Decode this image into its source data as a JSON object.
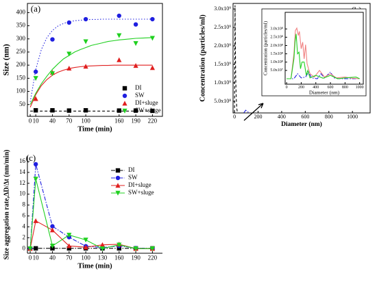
{
  "chart_data": [
    {
      "type": "scatter",
      "label": "(a)",
      "xlabel": "Time (min)",
      "ylabel": "Size (nm)",
      "x": [
        10,
        40,
        70,
        100,
        160,
        190,
        220
      ],
      "xlim": [
        -5,
        238
      ],
      "xticks": [
        0,
        10,
        40,
        70,
        100,
        160,
        190,
        220
      ],
      "ylim": [
        5,
        435
      ],
      "yticks": [
        50,
        100,
        150,
        200,
        250,
        300,
        350,
        400
      ],
      "legend": "lower right",
      "fit_x": [
        0,
        10,
        20,
        30,
        40,
        50,
        60,
        70,
        80,
        90,
        100,
        110,
        120,
        130,
        140,
        150,
        160,
        170,
        180,
        190,
        200,
        210,
        220
      ],
      "series": [
        {
          "name": "DI",
          "color": "#000000",
          "marker": "square",
          "dash": "dash",
          "values": [
            28,
            28,
            27,
            28,
            27,
            27,
            26
          ],
          "fit": [
            25,
            25,
            25,
            25,
            25,
            25,
            25,
            25,
            25,
            25,
            25,
            25,
            25,
            25,
            25,
            25,
            25,
            25,
            25,
            25,
            25,
            25,
            25
          ]
        },
        {
          "name": "SW",
          "color": "#1f1fe0",
          "marker": "circle",
          "dash": "dot",
          "values": [
            175,
            298,
            362,
            375,
            388,
            355,
            375
          ],
          "fit": [
            60,
            184,
            259,
            305,
            332,
            349,
            359,
            365,
            369,
            371,
            373,
            374,
            374,
            375,
            375,
            375,
            375,
            375,
            375,
            375,
            375,
            375,
            375
          ]
        },
        {
          "name": "DI+sluge",
          "color": "#e01f1f",
          "marker": "triangle",
          "dash": "solid",
          "values": [
            72,
            172,
            188,
            195,
            220,
            198,
            190
          ],
          "fit": [
            40,
            88,
            122,
            145,
            162,
            173,
            181,
            187,
            191,
            194,
            196,
            197,
            198,
            199,
            199,
            200,
            200,
            200,
            200,
            200,
            200,
            200,
            200
          ]
        },
        {
          "name": "SW+sluge",
          "color": "#1fd01f",
          "marker": "triangle-down",
          "dash": "solid",
          "values": [
            150,
            168,
            243,
            290,
            313,
            283,
            303
          ],
          "fit": [
            50,
            93,
            129,
            158,
            184,
            205,
            224,
            237,
            250,
            259,
            267,
            275,
            280,
            285,
            290,
            293,
            296,
            298,
            300,
            302,
            303,
            304,
            305
          ]
        }
      ]
    },
    {
      "type": "line",
      "label": "(b)",
      "xlabel": "Diameter (nm)",
      "ylabel": "Concentration (particles/ml)",
      "xlim": [
        -12,
        1150
      ],
      "xticks": [
        0,
        200,
        400,
        600,
        800,
        1000
      ],
      "ylim": [
        185000000,
        3150000000
      ],
      "yticks": [
        {
          "value": 500000000,
          "label": "5.0x10⁸"
        },
        {
          "value": 1000000000,
          "label": "1.0x10⁹"
        },
        {
          "value": 1500000000,
          "label": "1.5x10⁹"
        },
        {
          "value": 2000000000,
          "label": "2.0x10⁹"
        },
        {
          "value": 2500000000,
          "label": "2.5x10⁹"
        },
        {
          "value": 3000000000,
          "label": "3.0x10⁹"
        }
      ],
      "legend": "upper right",
      "series": [
        {
          "name": "DI",
          "color": "#000000",
          "dash": "dash",
          "x": [
            0,
            5,
            10,
            15,
            20,
            25
          ],
          "values": [
            190000000,
            3100000000,
            1200000000,
            600000000,
            300000000,
            190000000
          ]
        },
        {
          "name": "SW",
          "color": "#1f1fe0",
          "dash": "dashdot",
          "x": [
            80,
            95,
            110,
            125
          ],
          "values": [
            190000000,
            260000000,
            220000000,
            190000000
          ]
        },
        {
          "name": "DI+sluge",
          "color": "#f08080",
          "dash": "solid",
          "x": [],
          "values": []
        },
        {
          "name": "SW+sluge",
          "color": "#1fd01f",
          "dash": "solid",
          "x": [],
          "values": []
        }
      ]
    },
    {
      "type": "line",
      "xlabel": "Diameter (nm)",
      "ylabel": "Concentration (particles/ml)",
      "xlim": [
        -20,
        1050
      ],
      "xticks": [
        0,
        200,
        400,
        600,
        800,
        1000
      ],
      "ylim": [
        -33000000,
        400000000
      ],
      "yticks": [
        {
          "value": 50000000,
          "label": "5.0x10⁷"
        },
        {
          "value": 100000000,
          "label": "1.0x10⁸"
        },
        {
          "value": 150000000,
          "label": "1.5x10⁸"
        },
        {
          "value": 200000000,
          "label": "2.0x10⁸"
        },
        {
          "value": 250000000,
          "label": "2.5x10⁸"
        },
        {
          "value": 300000000,
          "label": "3.0x10⁸"
        }
      ],
      "series": [
        {
          "color": "#1f1fe0",
          "dash": "dashdot",
          "x": [
            0,
            100,
            150,
            200,
            260,
            300,
            340,
            420,
            470,
            520,
            600,
            650,
            720,
            1000
          ],
          "values": [
            0,
            0,
            30000000,
            5000000,
            10000000,
            40000000,
            5000000,
            0,
            30000000,
            5000000,
            40000000,
            5000000,
            0,
            0
          ]
        },
        {
          "color": "#f08080",
          "dash": "solid",
          "x": [
            0,
            60,
            100,
            120,
            140,
            160,
            175,
            200,
            220,
            240,
            260,
            280,
            320,
            380,
            450,
            520,
            600,
            680,
            800,
            900,
            1000
          ],
          "values": [
            0,
            0,
            150000000,
            290000000,
            305000000,
            260000000,
            285000000,
            180000000,
            220000000,
            120000000,
            205000000,
            90000000,
            30000000,
            10000000,
            50000000,
            10000000,
            30000000,
            5000000,
            10000000,
            3000000,
            0
          ]
        },
        {
          "color": "#1fd01f",
          "dash": "solid",
          "x": [
            0,
            60,
            100,
            115,
            130,
            150,
            170,
            190,
            210,
            240,
            270,
            290,
            320,
            400,
            500,
            600,
            700,
            800,
            950,
            1000
          ],
          "values": [
            0,
            0,
            120000000,
            220000000,
            270000000,
            150000000,
            160000000,
            60000000,
            100000000,
            100000000,
            20000000,
            50000000,
            5000000,
            20000000,
            3000000,
            20000000,
            0,
            5000000,
            10000000,
            0
          ]
        }
      ]
    },
    {
      "type": "line",
      "label": "(c)",
      "xlabel": "Time (min)",
      "ylabel": "Size aggregation rate,ΔD/Δt (nm/min)",
      "x": [
        0,
        10,
        40,
        70,
        100,
        130,
        160,
        190,
        220
      ],
      "xlim": [
        -5,
        238
      ],
      "xticks": [
        0,
        10,
        40,
        70,
        100,
        130,
        160,
        190,
        220
      ],
      "ylim": [
        -0.85,
        17
      ],
      "yticks": [
        0,
        2,
        4,
        6,
        8,
        10,
        12,
        14,
        16
      ],
      "legend": "upper right",
      "series": [
        {
          "name": "DI",
          "color": "#000000",
          "marker": "square",
          "dash": "dashdot",
          "values": [
            0,
            0.05,
            0.05,
            0.05,
            0.05,
            0.05,
            0.05,
            0.05,
            0.05
          ]
        },
        {
          "name": "SW",
          "color": "#1f1fe0",
          "marker": "circle",
          "dash": "dashdot",
          "values": [
            0,
            15.5,
            4.1,
            2.1,
            0.45,
            0.2,
            0.5,
            0.1,
            0
          ]
        },
        {
          "name": "DI+sluge",
          "color": "#e01f1f",
          "marker": "triangle",
          "dash": "solid",
          "values": [
            0,
            5.1,
            3.4,
            0.5,
            0.25,
            0.7,
            0.8,
            0,
            0
          ]
        },
        {
          "name": "SW+sluge",
          "color": "#1fd01f",
          "marker": "triangle-down",
          "dash": "solid",
          "values": [
            0,
            12.8,
            0.5,
            2.5,
            1.6,
            0,
            0.7,
            0,
            0
          ]
        }
      ]
    }
  ]
}
